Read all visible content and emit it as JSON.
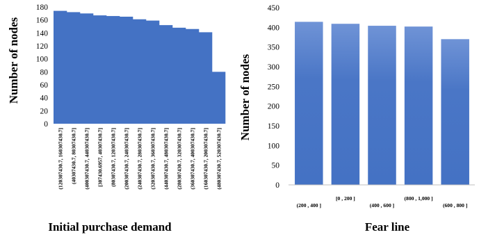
{
  "chart_data": [
    {
      "type": "bar",
      "title": "",
      "xlabel": "Initial purchase demand",
      "ylabel": "Number of nodes",
      "ylim": [
        0,
        180
      ],
      "yticks": [
        0,
        20,
        40,
        60,
        80,
        100,
        120,
        140,
        160,
        180
      ],
      "grid": false,
      "legend": "none",
      "bar_color": "#4472c4",
      "categories": [
        "(120307430.7, 160307430.7]",
        "(40307430.7, 80307430.7]",
        "(400307430.7, 440307430.7]",
        "[307430.6957, 40307430.7]",
        "(80307430.7, 120307430.7]",
        "(200307430.7, 240307430.7]",
        "(240307430.7, 280307430.7]",
        "(320307430.7, 360307430.7]",
        "(440307430.7, 480307430.7]",
        "(280307430.7, 320307430.7]",
        "(360307430.7, 400307430.7]",
        "(160307430.7, 200307430.7]",
        "(480307430.7, 520307430.7]"
      ],
      "values": [
        174,
        172,
        170,
        167,
        166,
        165,
        161,
        159,
        152,
        148,
        146,
        141,
        80
      ]
    },
    {
      "type": "bar",
      "title": "",
      "xlabel": "Fear line",
      "ylabel": "Number of nodes",
      "ylim": [
        0,
        450
      ],
      "yticks": [
        0,
        50,
        100,
        150,
        200,
        250,
        300,
        350,
        400,
        450
      ],
      "grid": false,
      "legend": "none",
      "bar_color": "#4472c4",
      "categories": [
        "(200 , 400 ]",
        "[0 , 200 ]",
        "(400 , 600 ]",
        "(800 , 1,000 ]",
        "(600 , 800 ]"
      ],
      "values": [
        414,
        409,
        404,
        402,
        370
      ]
    }
  ]
}
